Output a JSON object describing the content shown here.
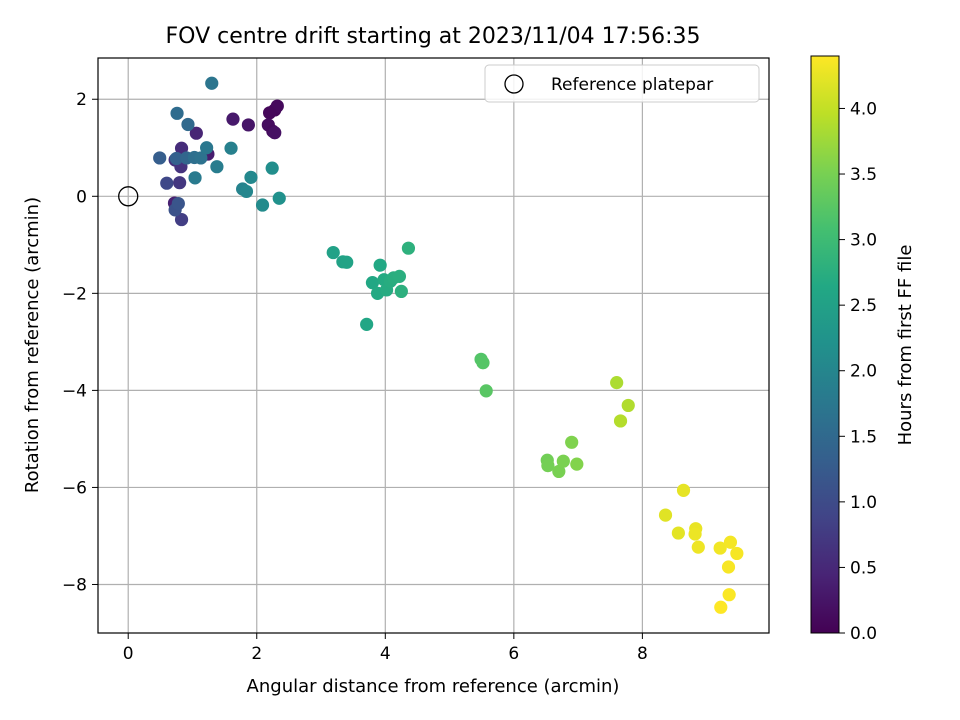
{
  "chart_data": {
    "type": "scatter",
    "title": "FOV centre drift starting at 2023/11/04 17:56:35",
    "xlabel": "Angular distance from reference (arcmin)",
    "ylabel": "Rotation from reference (arcmin)",
    "xlim": [
      -0.47,
      9.97
    ],
    "ylim": [
      -9.0,
      2.85
    ],
    "xticks": [
      0,
      2,
      4,
      6,
      8
    ],
    "yticks": [
      2,
      0,
      -2,
      -4,
      -6,
      -8
    ],
    "xtick_labels": [
      "0",
      "2",
      "4",
      "6",
      "8"
    ],
    "ytick_labels": [
      "2",
      "0",
      "−2",
      "−4",
      "−6",
      "−8"
    ],
    "grid": true,
    "legend": {
      "placement": "top-right",
      "entries": [
        "Reference platepar"
      ]
    },
    "reference_point": {
      "x": 0.0,
      "y": 0.0,
      "label": "Reference platepar",
      "marker": "open-circle"
    },
    "colorbar": {
      "label": "Hours from first FF file",
      "colormap": "viridis",
      "range": [
        0.0,
        4.4
      ],
      "ticks": [
        0.0,
        0.5,
        1.0,
        1.5,
        2.0,
        2.5,
        3.0,
        3.5,
        4.0
      ],
      "tick_labels": [
        "0.0",
        "0.5",
        "1.0",
        "1.5",
        "2.0",
        "2.5",
        "3.0",
        "3.5",
        "4.0"
      ]
    },
    "points": [
      {
        "x": 2.28,
        "y": 1.78,
        "h": 0.05
      },
      {
        "x": 2.32,
        "y": 1.86,
        "h": 0.1
      },
      {
        "x": 2.2,
        "y": 1.72,
        "h": 0.08
      },
      {
        "x": 2.18,
        "y": 1.47,
        "h": 0.15
      },
      {
        "x": 2.25,
        "y": 1.34,
        "h": 0.12
      },
      {
        "x": 2.28,
        "y": 1.31,
        "h": 0.2
      },
      {
        "x": 1.87,
        "y": 1.47,
        "h": 0.25
      },
      {
        "x": 1.63,
        "y": 1.59,
        "h": 0.3
      },
      {
        "x": 1.24,
        "y": 0.87,
        "h": 0.35
      },
      {
        "x": 0.72,
        "y": -0.14,
        "h": 0.4
      },
      {
        "x": 1.06,
        "y": 1.3,
        "h": 0.45
      },
      {
        "x": 0.83,
        "y": 0.99,
        "h": 0.55
      },
      {
        "x": 0.73,
        "y": 0.75,
        "h": 0.6
      },
      {
        "x": 0.82,
        "y": 0.61,
        "h": 0.65
      },
      {
        "x": 0.8,
        "y": 0.28,
        "h": 0.7
      },
      {
        "x": 0.83,
        "y": -0.48,
        "h": 0.8
      },
      {
        "x": 0.6,
        "y": 0.27,
        "h": 0.95
      },
      {
        "x": 0.73,
        "y": -0.28,
        "h": 1.1
      },
      {
        "x": 0.78,
        "y": -0.15,
        "h": 1.15
      },
      {
        "x": 0.49,
        "y": 0.79,
        "h": 1.3
      },
      {
        "x": 0.75,
        "y": 0.78,
        "h": 1.35
      },
      {
        "x": 0.91,
        "y": 0.79,
        "h": 1.45
      },
      {
        "x": 0.93,
        "y": 1.48,
        "h": 1.5
      },
      {
        "x": 0.76,
        "y": 1.71,
        "h": 1.55
      },
      {
        "x": 1.03,
        "y": 0.8,
        "h": 1.6
      },
      {
        "x": 1.13,
        "y": 0.79,
        "h": 1.65
      },
      {
        "x": 1.3,
        "y": 2.33,
        "h": 1.7
      },
      {
        "x": 1.22,
        "y": 1.0,
        "h": 1.75
      },
      {
        "x": 1.04,
        "y": 0.38,
        "h": 1.8
      },
      {
        "x": 1.38,
        "y": 0.61,
        "h": 1.85
      },
      {
        "x": 1.6,
        "y": 0.99,
        "h": 1.9
      },
      {
        "x": 1.78,
        "y": 0.15,
        "h": 1.95
      },
      {
        "x": 1.84,
        "y": 0.1,
        "h": 2.0
      },
      {
        "x": 1.91,
        "y": 0.39,
        "h": 2.05
      },
      {
        "x": 2.09,
        "y": -0.18,
        "h": 2.1
      },
      {
        "x": 2.24,
        "y": 0.58,
        "h": 2.15
      },
      {
        "x": 2.35,
        "y": -0.04,
        "h": 2.2
      },
      {
        "x": 3.19,
        "y": -1.16,
        "h": 2.5
      },
      {
        "x": 3.34,
        "y": -1.35,
        "h": 2.52
      },
      {
        "x": 3.4,
        "y": -1.36,
        "h": 2.55
      },
      {
        "x": 3.71,
        "y": -2.64,
        "h": 2.6
      },
      {
        "x": 3.8,
        "y": -1.78,
        "h": 2.62
      },
      {
        "x": 3.92,
        "y": -1.42,
        "h": 2.64
      },
      {
        "x": 3.88,
        "y": -2.0,
        "h": 2.66
      },
      {
        "x": 3.98,
        "y": -1.72,
        "h": 2.68
      },
      {
        "x": 4.02,
        "y": -1.93,
        "h": 2.7
      },
      {
        "x": 4.08,
        "y": -1.75,
        "h": 2.72
      },
      {
        "x": 4.13,
        "y": -1.68,
        "h": 2.74
      },
      {
        "x": 4.22,
        "y": -1.65,
        "h": 2.76
      },
      {
        "x": 4.25,
        "y": -1.96,
        "h": 2.78
      },
      {
        "x": 4.36,
        "y": -1.07,
        "h": 2.8
      },
      {
        "x": 5.49,
        "y": -3.36,
        "h": 3.2
      },
      {
        "x": 5.52,
        "y": -3.43,
        "h": 3.22
      },
      {
        "x": 5.57,
        "y": -4.01,
        "h": 3.25
      },
      {
        "x": 6.52,
        "y": -5.44,
        "h": 3.45
      },
      {
        "x": 6.53,
        "y": -5.55,
        "h": 3.47
      },
      {
        "x": 6.7,
        "y": -5.67,
        "h": 3.5
      },
      {
        "x": 6.77,
        "y": -5.46,
        "h": 3.52
      },
      {
        "x": 6.9,
        "y": -5.07,
        "h": 3.55
      },
      {
        "x": 6.98,
        "y": -5.52,
        "h": 3.57
      },
      {
        "x": 7.6,
        "y": -3.84,
        "h": 3.85
      },
      {
        "x": 7.78,
        "y": -4.31,
        "h": 3.88
      },
      {
        "x": 7.66,
        "y": -4.63,
        "h": 3.9
      },
      {
        "x": 8.36,
        "y": -6.57,
        "h": 4.2
      },
      {
        "x": 8.56,
        "y": -6.94,
        "h": 4.22
      },
      {
        "x": 8.64,
        "y": -6.06,
        "h": 4.24
      },
      {
        "x": 8.83,
        "y": -6.85,
        "h": 4.26
      },
      {
        "x": 8.82,
        "y": -6.96,
        "h": 4.28
      },
      {
        "x": 8.87,
        "y": -7.23,
        "h": 4.3
      },
      {
        "x": 9.21,
        "y": -7.25,
        "h": 4.32
      },
      {
        "x": 9.37,
        "y": -7.13,
        "h": 4.34
      },
      {
        "x": 9.47,
        "y": -7.36,
        "h": 4.35
      },
      {
        "x": 9.34,
        "y": -7.64,
        "h": 4.36
      },
      {
        "x": 9.35,
        "y": -8.21,
        "h": 4.38
      },
      {
        "x": 9.22,
        "y": -8.47,
        "h": 4.4
      }
    ]
  }
}
